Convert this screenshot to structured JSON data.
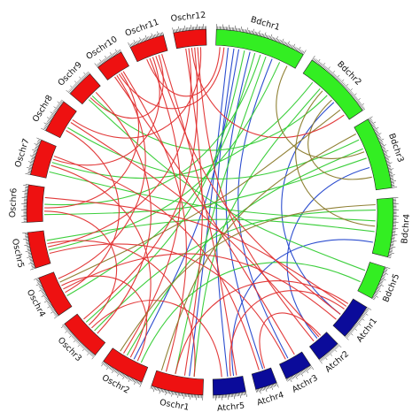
{
  "colors": {
    "Bd": "#33ee22",
    "At": "#0b0b9a",
    "Os": "#ee1111",
    "tick": "#333333",
    "link_red": "#e03030",
    "link_green": "#33cc33",
    "link_blue": "#2244cc",
    "link_olive": "#8a7a2a"
  },
  "chromosomes": [
    {
      "label": "Bdchr1",
      "species": "Bd",
      "size": 75
    },
    {
      "label": "Bdchr2",
      "species": "Bd",
      "size": 59
    },
    {
      "label": "Bdchr3",
      "species": "Bd",
      "size": 60
    },
    {
      "label": "Bdchr4",
      "species": "Bd",
      "size": 49
    },
    {
      "label": "Bdchr5",
      "species": "Bd",
      "size": 28
    },
    {
      "label": "Atchr1",
      "species": "At",
      "size": 30
    },
    {
      "label": "Atchr2",
      "species": "At",
      "size": 20
    },
    {
      "label": "Atchr3",
      "species": "At",
      "size": 23
    },
    {
      "label": "Atchr4",
      "species": "At",
      "size": 18
    },
    {
      "label": "Atchr5",
      "species": "At",
      "size": 27
    },
    {
      "label": "Oschr1",
      "species": "Os",
      "size": 43
    },
    {
      "label": "Oschr2",
      "species": "Os",
      "size": 36
    },
    {
      "label": "Oschr3",
      "species": "Os",
      "size": 36
    },
    {
      "label": "Oschr4",
      "species": "Os",
      "size": 35
    },
    {
      "label": "Oschr5",
      "species": "Os",
      "size": 30
    },
    {
      "label": "Oschr6",
      "species": "Os",
      "size": 31
    },
    {
      "label": "Oschr7",
      "species": "Os",
      "size": 30
    },
    {
      "label": "Oschr8",
      "species": "Os",
      "size": 28
    },
    {
      "label": "Oschr9",
      "species": "Os",
      "size": 23
    },
    {
      "label": "Oschr10",
      "species": "Os",
      "size": 23
    },
    {
      "label": "Oschr11",
      "species": "Os",
      "size": 29
    },
    {
      "label": "Oschr12",
      "species": "Os",
      "size": 27
    }
  ],
  "links": [
    {
      "a": "Bdchr1",
      "ap": 0.15,
      "b": "Oschr1",
      "bp": 0.3,
      "c": "link_blue"
    },
    {
      "a": "Bdchr1",
      "ap": 0.22,
      "b": "Atchr5",
      "bp": 0.5,
      "c": "link_blue"
    },
    {
      "a": "Bdchr1",
      "ap": 0.28,
      "b": "Oschr2",
      "bp": 0.4,
      "c": "link_blue"
    },
    {
      "a": "Bdchr1",
      "ap": 0.35,
      "b": "Oschr3",
      "bp": 0.7,
      "c": "link_green"
    },
    {
      "a": "Bdchr1",
      "ap": 0.42,
      "b": "Atchr4",
      "bp": 0.4,
      "c": "link_blue"
    },
    {
      "a": "Bdchr1",
      "ap": 0.48,
      "b": "Oschr4",
      "bp": 0.3,
      "c": "link_green"
    },
    {
      "a": "Bdchr1",
      "ap": 0.55,
      "b": "Oschr6",
      "bp": 0.5,
      "c": "link_green"
    },
    {
      "a": "Bdchr1",
      "ap": 0.62,
      "b": "Oschr1",
      "bp": 0.6,
      "c": "link_green"
    },
    {
      "a": "Bdchr1",
      "ap": 0.7,
      "b": "Atchr3",
      "bp": 0.6,
      "c": "link_blue"
    },
    {
      "a": "Bdchr1",
      "ap": 0.8,
      "b": "Oschr5",
      "bp": 0.4,
      "c": "link_green"
    },
    {
      "a": "Bdchr1",
      "ap": 0.1,
      "b": "Oschr10",
      "bp": 0.5,
      "c": "link_red"
    },
    {
      "a": "Bdchr1",
      "ap": 0.05,
      "b": "Oschr11",
      "bp": 0.3,
      "c": "link_red"
    },
    {
      "a": "Bdchr2",
      "ap": 0.2,
      "b": "Oschr7",
      "bp": 0.5,
      "c": "link_green"
    },
    {
      "a": "Bdchr2",
      "ap": 0.35,
      "b": "Oschr1",
      "bp": 0.2,
      "c": "link_green"
    },
    {
      "a": "Bdchr2",
      "ap": 0.5,
      "b": "Oschr9",
      "bp": 0.5,
      "c": "link_green"
    },
    {
      "a": "Bdchr2",
      "ap": 0.65,
      "b": "Atchr1",
      "bp": 0.6,
      "c": "link_blue"
    },
    {
      "a": "Bdchr2",
      "ap": 0.8,
      "b": "Oschr4",
      "bp": 0.7,
      "c": "link_olive"
    },
    {
      "a": "Bdchr2",
      "ap": 0.9,
      "b": "Oschr12",
      "bp": 0.5,
      "c": "link_red"
    },
    {
      "a": "Bdchr3",
      "ap": 0.2,
      "b": "Oschr8",
      "bp": 0.4,
      "c": "link_green"
    },
    {
      "a": "Bdchr3",
      "ap": 0.35,
      "b": "Oschr2",
      "bp": 0.6,
      "c": "link_green"
    },
    {
      "a": "Bdchr3",
      "ap": 0.5,
      "b": "Oschr6",
      "bp": 0.2,
      "c": "link_green"
    },
    {
      "a": "Bdchr3",
      "ap": 0.65,
      "b": "Atchr2",
      "bp": 0.5,
      "c": "link_blue"
    },
    {
      "a": "Bdchr3",
      "ap": 0.8,
      "b": "Bdchr2",
      "bp": 0.6,
      "c": "link_olive"
    },
    {
      "a": "Bdchr4",
      "ap": 0.2,
      "b": "Oschr3",
      "bp": 0.4,
      "c": "link_green"
    },
    {
      "a": "Bdchr4",
      "ap": 0.4,
      "b": "Oschr7",
      "bp": 0.2,
      "c": "link_green"
    },
    {
      "a": "Bdchr4",
      "ap": 0.6,
      "b": "Oschr5",
      "bp": 0.7,
      "c": "link_green"
    },
    {
      "a": "Bdchr4",
      "ap": 0.8,
      "b": "Atchr5",
      "bp": 0.3,
      "c": "link_blue"
    },
    {
      "a": "Bdchr5",
      "ap": 0.3,
      "b": "Oschr9",
      "bp": 0.3,
      "c": "link_green"
    },
    {
      "a": "Bdchr5",
      "ap": 0.7,
      "b": "Oschr2",
      "bp": 0.2,
      "c": "link_green"
    },
    {
      "a": "Atchr1",
      "ap": 0.3,
      "b": "Oschr6",
      "bp": 0.7,
      "c": "link_red"
    },
    {
      "a": "Atchr1",
      "ap": 0.6,
      "b": "Oschr11",
      "bp": 0.6,
      "c": "link_red"
    },
    {
      "a": "Atchr1",
      "ap": 0.8,
      "b": "Oschr4",
      "bp": 0.5,
      "c": "link_red"
    },
    {
      "a": "Atchr2",
      "ap": 0.4,
      "b": "Oschr8",
      "bp": 0.6,
      "c": "link_red"
    },
    {
      "a": "Atchr2",
      "ap": 0.7,
      "b": "Oschr12",
      "bp": 0.7,
      "c": "link_red"
    },
    {
      "a": "Atchr3",
      "ap": 0.3,
      "b": "Oschr10",
      "bp": 0.3,
      "c": "link_red"
    },
    {
      "a": "Atchr3",
      "ap": 0.7,
      "b": "Oschr5",
      "bp": 0.3,
      "c": "link_red"
    },
    {
      "a": "Atchr4",
      "ap": 0.6,
      "b": "Oschr7",
      "bp": 0.7,
      "c": "link_red"
    },
    {
      "a": "Atchr5",
      "ap": 0.7,
      "b": "Oschr3",
      "bp": 0.5,
      "c": "link_red"
    },
    {
      "a": "Atchr5",
      "ap": 0.2,
      "b": "Oschr11",
      "bp": 0.8,
      "c": "link_red"
    },
    {
      "a": "Oschr1",
      "ap": 0.4,
      "b": "Oschr12",
      "bp": 0.3,
      "c": "link_red"
    },
    {
      "a": "Oschr1",
      "ap": 0.8,
      "b": "Oschr10",
      "bp": 0.7,
      "c": "link_red"
    },
    {
      "a": "Oschr2",
      "ap": 0.7,
      "b": "Oschr11",
      "bp": 0.4,
      "c": "link_red"
    },
    {
      "a": "Oschr2",
      "ap": 0.3,
      "b": "Oschr4",
      "bp": 0.6,
      "c": "link_red"
    },
    {
      "a": "Oschr3",
      "ap": 0.3,
      "b": "Oschr9",
      "bp": 0.7,
      "c": "link_red"
    },
    {
      "a": "Oschr3",
      "ap": 0.8,
      "b": "Oschr12",
      "bp": 0.6,
      "c": "link_red"
    },
    {
      "a": "Oschr4",
      "ap": 0.4,
      "b": "Oschr8",
      "bp": 0.3,
      "c": "link_red"
    },
    {
      "a": "Oschr5",
      "ap": 0.5,
      "b": "Oschr12",
      "bp": 0.4,
      "c": "link_red"
    },
    {
      "a": "Oschr6",
      "ap": 0.4,
      "b": "Oschr10",
      "bp": 0.6,
      "c": "link_red"
    },
    {
      "a": "Oschr7",
      "ap": 0.6,
      "b": "Oschr11",
      "bp": 0.5,
      "c": "link_red"
    },
    {
      "a": "Oschr8",
      "ap": 0.7,
      "b": "Oschr12",
      "bp": 0.8,
      "c": "link_red"
    },
    {
      "a": "Oschr1",
      "ap": 0.2,
      "b": "Oschr5",
      "bp": 0.6,
      "c": "link_red"
    },
    {
      "a": "Oschr2",
      "ap": 0.5,
      "b": "Oschr7",
      "bp": 0.4,
      "c": "link_red"
    },
    {
      "a": "Oschr3",
      "ap": 0.6,
      "b": "Oschr6",
      "bp": 0.3,
      "c": "link_red"
    },
    {
      "a": "Oschr4",
      "ap": 0.8,
      "b": "Oschr10",
      "bp": 0.4,
      "c": "link_red"
    },
    {
      "a": "Oschr9",
      "ap": 0.4,
      "b": "Oschr11",
      "bp": 0.7,
      "c": "link_red"
    },
    {
      "a": "Bdchr2",
      "ap": 0.4,
      "b": "Bdchr4",
      "bp": 0.5,
      "c": "link_olive"
    },
    {
      "a": "Bdchr1",
      "ap": 0.9,
      "b": "Bdchr3",
      "bp": 0.4,
      "c": "link_olive"
    },
    {
      "a": "Bdchr3",
      "ap": 0.1,
      "b": "Oschr1",
      "bp": 0.9,
      "c": "link_olive"
    },
    {
      "a": "Bdchr4",
      "ap": 0.1,
      "b": "Oschr2",
      "bp": 0.8,
      "c": "link_olive"
    },
    {
      "a": "Atchr5",
      "ap": 0.4,
      "b": "Atchr1",
      "bp": 0.4,
      "c": "link_red"
    },
    {
      "a": "Atchr4",
      "ap": 0.3,
      "b": "Atchr2",
      "bp": 0.3,
      "c": "link_red"
    },
    {
      "a": "Oschr1",
      "ap": 0.6,
      "b": "Atchr1",
      "bp": 0.2,
      "c": "link_red"
    }
  ]
}
